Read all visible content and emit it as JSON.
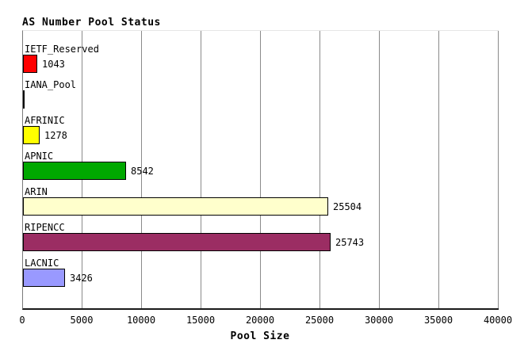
{
  "chart_data": {
    "type": "bar",
    "orientation": "horizontal",
    "title": "AS Number Pool Status",
    "xlabel": "Pool Size",
    "xlim": [
      0,
      40000
    ],
    "grid": "vertical-on",
    "legend": "none",
    "xticks": [
      "0",
      "5000",
      "10000",
      "15000",
      "20000",
      "25000",
      "30000",
      "35000",
      "40000"
    ],
    "categories": [
      "IETF_Reserved",
      "IANA_Pool",
      "AFRINIC",
      "APNIC",
      "ARIN",
      "RIPENCC",
      "LACNIC"
    ],
    "values": [
      1043,
      0,
      1278,
      8542,
      25504,
      25743,
      3426
    ],
    "bars": [
      {
        "label": "IETF_Reserved",
        "value": 1043,
        "value_label": "1043",
        "color": "#ff0000"
      },
      {
        "label": "IANA_Pool",
        "value": 0,
        "value_label": "",
        "color": "#ffffff"
      },
      {
        "label": "AFRINIC",
        "value": 1278,
        "value_label": "1278",
        "color": "#ffff00"
      },
      {
        "label": "APNIC",
        "value": 8542,
        "value_label": "8542",
        "color": "#00a800"
      },
      {
        "label": "ARIN",
        "value": 25504,
        "value_label": "25504",
        "color": "#ffffcc"
      },
      {
        "label": "RIPENCC",
        "value": 25743,
        "value_label": "25743",
        "color": "#9b2d63"
      },
      {
        "label": "LACNIC",
        "value": 3426,
        "value_label": "3426",
        "color": "#9999ff"
      }
    ]
  },
  "colors": {
    "gridline": "#8a8a8a",
    "axis": "#1a1a1a",
    "bar_border": "#000000",
    "background": "#ffffff",
    "text": "#000000"
  }
}
